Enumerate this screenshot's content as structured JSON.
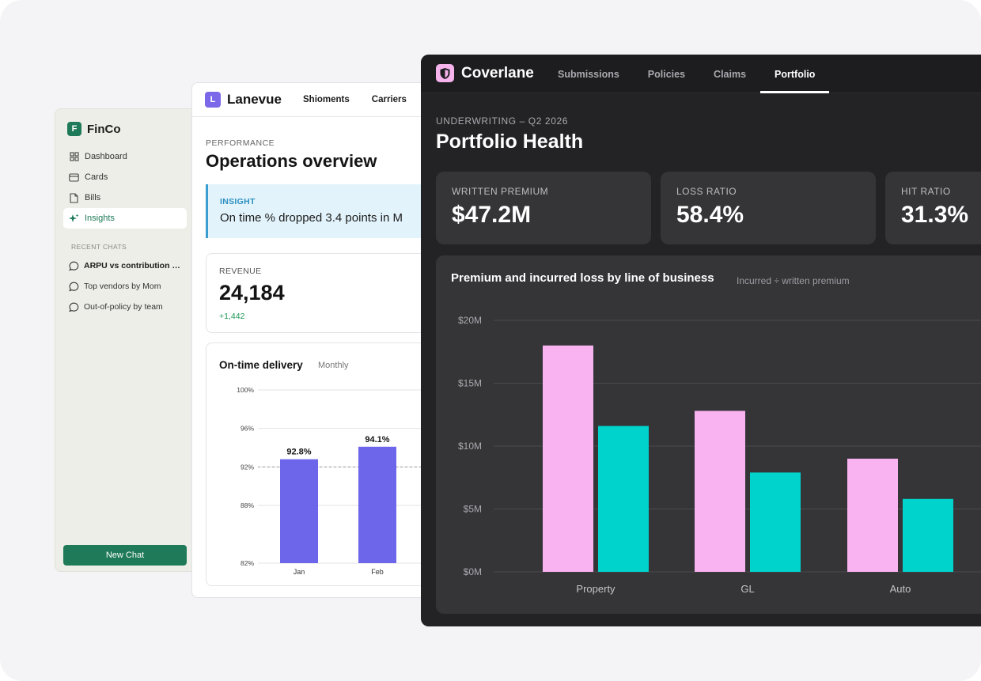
{
  "finco": {
    "brand": {
      "logo_letter": "F",
      "name": "FinCo"
    },
    "nav": [
      {
        "label": "Dashboard",
        "icon": "grid-icon",
        "active": false
      },
      {
        "label": "Cards",
        "icon": "card-icon",
        "active": false
      },
      {
        "label": "Bills",
        "icon": "file-icon",
        "active": false
      },
      {
        "label": "Insights",
        "icon": "sparkle-icon",
        "active": true
      }
    ],
    "recent_chats_label": "RECENT CHATS",
    "recent_chats": [
      {
        "label": "ARPU vs contribution margin",
        "bold": true
      },
      {
        "label": "Top vendors by Mom",
        "bold": false
      },
      {
        "label": "Out-of-policy by team",
        "bold": false
      }
    ],
    "new_chat_label": "New Chat",
    "accent": "#1e7a58"
  },
  "lanevue": {
    "brand": {
      "logo_letter": "L",
      "name": "Lanevue"
    },
    "tabs": [
      "Shioments",
      "Carriers"
    ],
    "eyebrow": "PERFORMANCE",
    "title": "Operations overview",
    "insight": {
      "label": "INSIGHT",
      "text": "On time % dropped 3.4 points in M"
    },
    "revenue": {
      "label": "REVENUE",
      "value": "24,184",
      "delta": "+1,442"
    },
    "chart": {
      "title": "On-time delivery",
      "subtitle": "Monthly"
    },
    "accent": "#6e66ea"
  },
  "coverlane": {
    "brand": {
      "name": "Coverlane",
      "logo_color": "#f6b3ec"
    },
    "tabs": [
      {
        "label": "Submissions",
        "active": false
      },
      {
        "label": "Policies",
        "active": false
      },
      {
        "label": "Claims",
        "active": false
      },
      {
        "label": "Portfolio",
        "active": true
      }
    ],
    "eyebrow": "UNDERWRITING – Q2 2026",
    "title": "Portfolio Health",
    "kpis": [
      {
        "label": "WRITTEN PREMIUM",
        "value": "$47.2M"
      },
      {
        "label": "LOSS RATIO",
        "value": "58.4%"
      },
      {
        "label": "HIT RATIO",
        "value": "31.3%"
      }
    ],
    "chart": {
      "title": "Premium and incurred loss by line of business",
      "subtitle": "Incurred ÷ written premium"
    }
  },
  "chart_data": [
    {
      "type": "bar",
      "title": "On-time delivery",
      "subtitle": "Monthly",
      "categories": [
        "Jan",
        "Feb"
      ],
      "values": [
        92.8,
        94.1
      ],
      "data_labels": [
        "92.8%",
        "94.1%"
      ],
      "ylim": [
        82,
        100
      ],
      "yticks": [
        100,
        96,
        92,
        88,
        82
      ],
      "ytick_labels": [
        "100%",
        "96%",
        "92%",
        "88%",
        "82%"
      ],
      "reference_line": 92,
      "grid": true,
      "color": "#6e66ea"
    },
    {
      "type": "bar",
      "title": "Premium and incurred loss by line of business",
      "subtitle": "Incurred ÷ written premium",
      "categories": [
        "Property",
        "GL",
        "Auto"
      ],
      "series": [
        {
          "values": [
            18.0,
            12.8,
            9.0
          ],
          "color": "#f9b3f0"
        },
        {
          "values": [
            11.6,
            7.9,
            5.8
          ],
          "color": "#00d2cc"
        }
      ],
      "ylim": [
        0,
        20
      ],
      "yticks": [
        20,
        15,
        10,
        5,
        0
      ],
      "ytick_labels": [
        "$20M",
        "$15M",
        "$10M",
        "$5M",
        "$0M"
      ],
      "grid": true
    }
  ]
}
